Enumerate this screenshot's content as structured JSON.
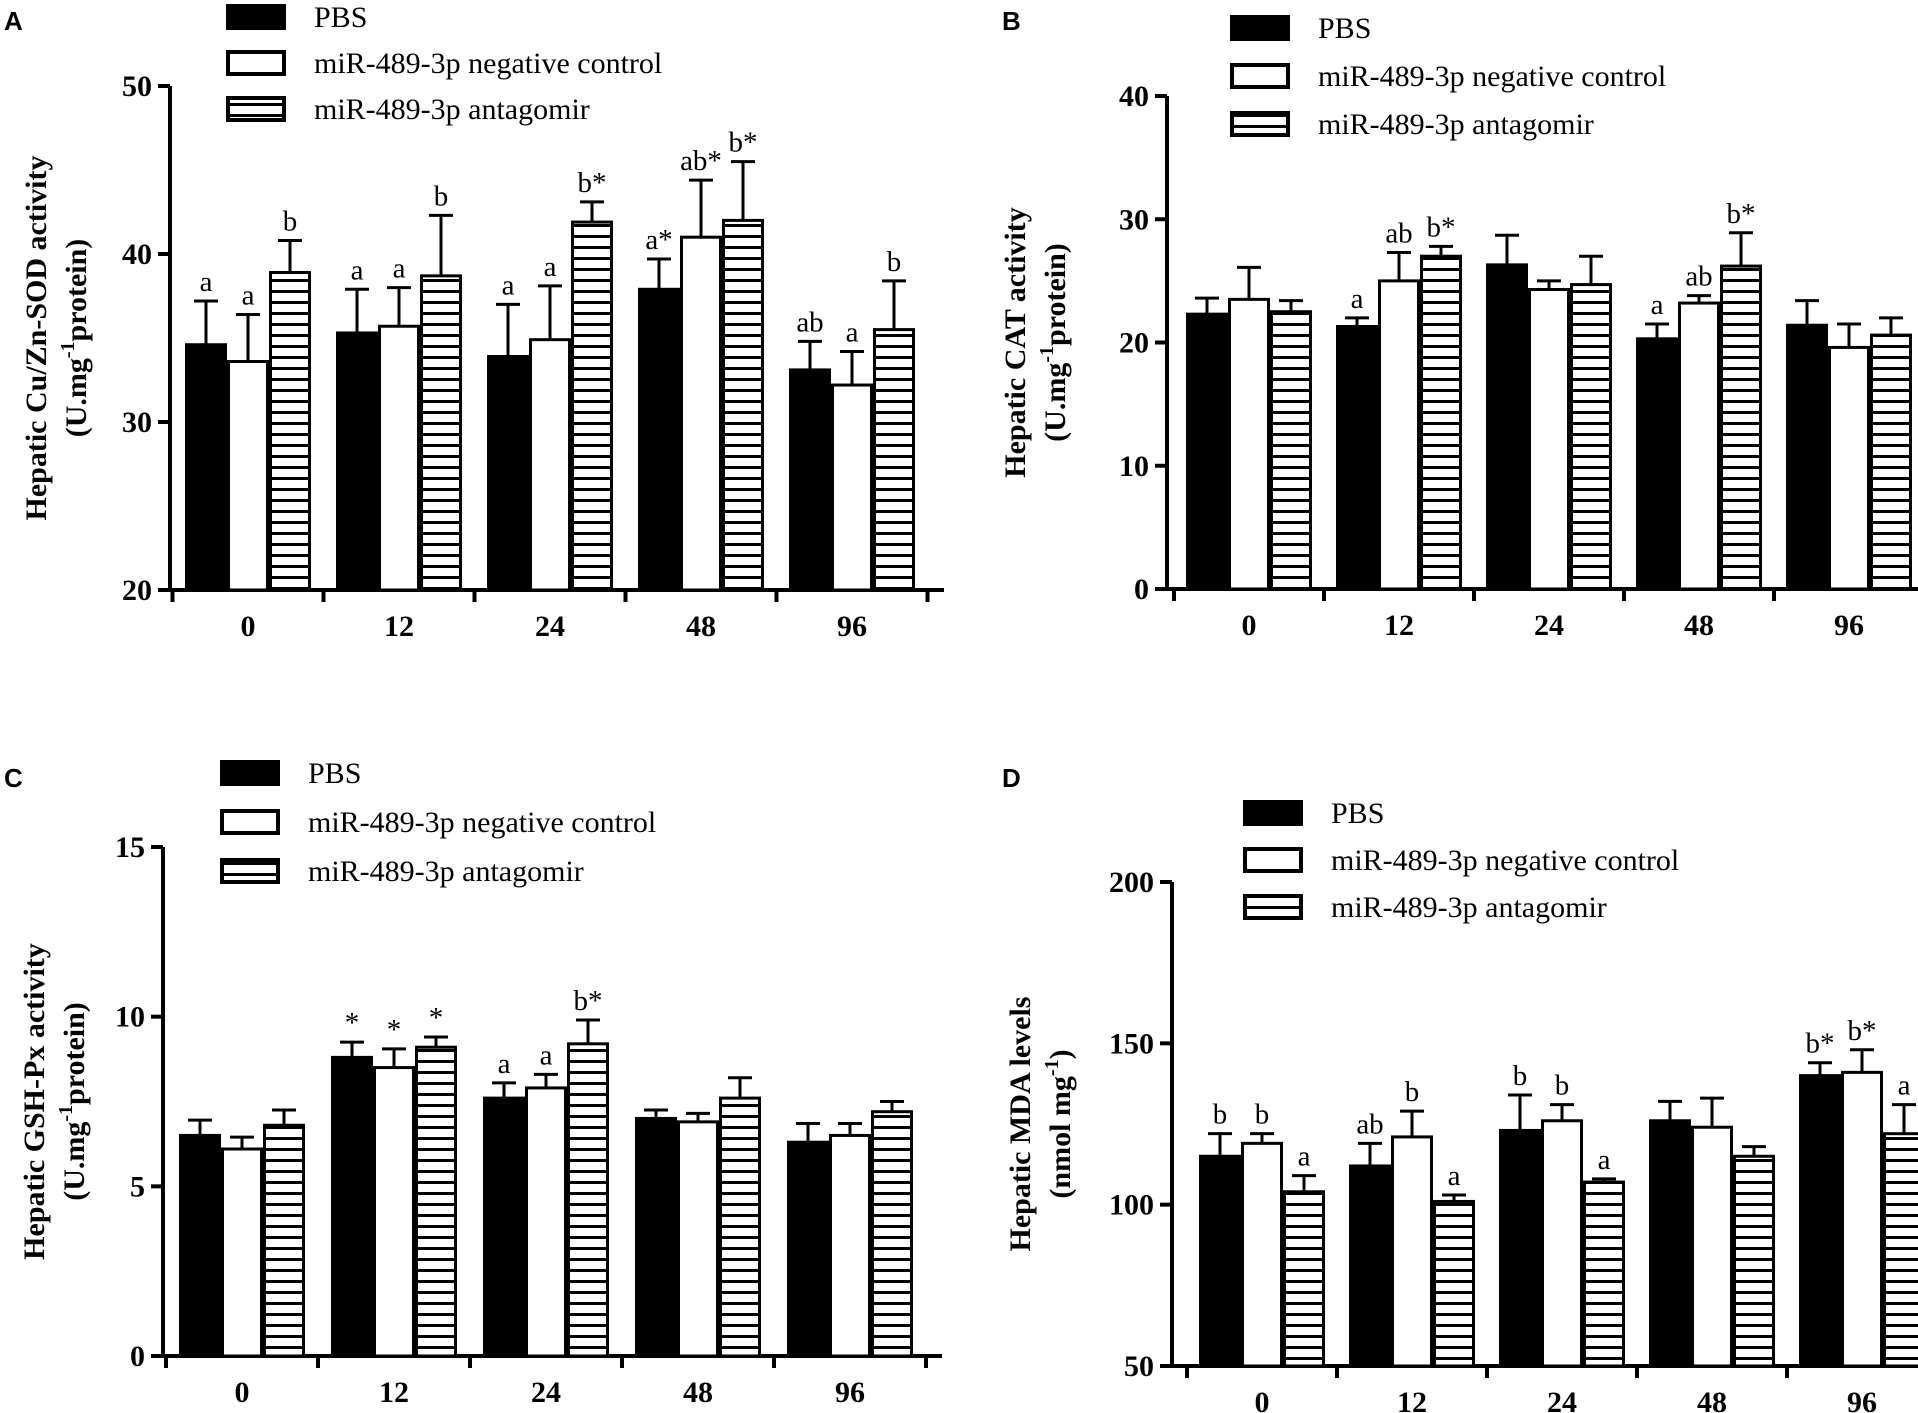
{
  "colors": {
    "pbs": "#000000",
    "negative_control": "#ffffff",
    "antagomir_stripe": "#000000",
    "axis": "#000000"
  },
  "legend_labels": [
    "PBS",
    "miR-489-3p negative control",
    "miR-489-3p antagomir"
  ],
  "chart_data": [
    {
      "panel": "A",
      "type": "bar",
      "ylabel_line1": "Hepatic Cu/Zn-SOD activity",
      "ylabel_line2_prefix": "(U.mg",
      "ylabel_line2_sup": "-1",
      "ylabel_line2_suffix": "protein)",
      "ylim": [
        20,
        50
      ],
      "yticks": [
        20,
        30,
        40,
        50
      ],
      "categories": [
        "0",
        "12",
        "24",
        "48",
        "96"
      ],
      "series": [
        {
          "name": "PBS",
          "values": [
            34.6,
            35.3,
            33.9,
            37.9,
            33.1
          ],
          "errors": [
            2.6,
            2.6,
            3.1,
            1.8,
            1.7
          ]
        },
        {
          "name": "miR-489-3p negative control",
          "values": [
            33.6,
            35.7,
            34.9,
            41.0,
            32.2
          ],
          "errors": [
            2.8,
            2.3,
            3.2,
            3.4,
            2.0
          ]
        },
        {
          "name": "miR-489-3p antagomir",
          "values": [
            38.9,
            38.7,
            41.9,
            42.0,
            35.5
          ],
          "errors": [
            1.9,
            3.6,
            1.2,
            3.5,
            2.9
          ]
        }
      ],
      "annotations": [
        [
          "a",
          "a",
          "b"
        ],
        [
          "a",
          "a",
          "b"
        ],
        [
          "a",
          "a",
          "b*"
        ],
        [
          "a*",
          "ab*",
          "b*"
        ],
        [
          "ab",
          "a",
          "b"
        ]
      ]
    },
    {
      "panel": "B",
      "type": "bar",
      "ylabel_line1": "Hepatic CAT activity",
      "ylabel_line2_prefix": "(U.mg",
      "ylabel_line2_sup": "-1",
      "ylabel_line2_suffix": "protein)",
      "ylim": [
        0,
        40
      ],
      "yticks": [
        0,
        10,
        20,
        30,
        40
      ],
      "categories": [
        "0",
        "12",
        "24",
        "48",
        "96"
      ],
      "series": [
        {
          "name": "PBS",
          "values": [
            22.3,
            21.3,
            26.3,
            20.3,
            21.4
          ],
          "errors": [
            1.3,
            0.7,
            2.4,
            1.2,
            2.0
          ]
        },
        {
          "name": "miR-489-3p negative control",
          "values": [
            23.5,
            25.0,
            24.3,
            23.2,
            19.6
          ],
          "errors": [
            2.6,
            2.3,
            0.7,
            0.6,
            1.9
          ]
        },
        {
          "name": "miR-489-3p antagomir",
          "values": [
            22.5,
            27.0,
            24.7,
            26.2,
            20.6
          ],
          "errors": [
            0.9,
            0.8,
            2.3,
            2.7,
            1.4
          ]
        }
      ],
      "annotations": [
        [
          "",
          "",
          ""
        ],
        [
          "a",
          "ab",
          "b*"
        ],
        [
          "",
          "",
          ""
        ],
        [
          "a",
          "ab",
          "b*"
        ],
        [
          "",
          "",
          ""
        ]
      ]
    },
    {
      "panel": "C",
      "type": "bar",
      "ylabel_line1": "Hepatic GSH-Px activity",
      "ylabel_line2_prefix": "(U.mg",
      "ylabel_line2_sup": "-1",
      "ylabel_line2_suffix": "protein)",
      "ylim": [
        0,
        15
      ],
      "yticks": [
        0,
        5,
        10,
        15
      ],
      "categories": [
        "0",
        "12",
        "24",
        "48",
        "96"
      ],
      "series": [
        {
          "name": "PBS",
          "values": [
            6.5,
            8.8,
            7.6,
            7.0,
            6.3
          ],
          "errors": [
            0.45,
            0.45,
            0.45,
            0.25,
            0.55
          ]
        },
        {
          "name": "miR-489-3p negative control",
          "values": [
            6.1,
            8.5,
            7.9,
            6.9,
            6.5
          ],
          "errors": [
            0.35,
            0.55,
            0.4,
            0.25,
            0.35
          ]
        },
        {
          "name": "miR-489-3p antagomir",
          "values": [
            6.8,
            9.1,
            9.2,
            7.6,
            7.2
          ],
          "errors": [
            0.45,
            0.3,
            0.7,
            0.6,
            0.3
          ]
        }
      ],
      "annotations": [
        [
          "",
          "",
          ""
        ],
        [
          "*",
          "*",
          "*"
        ],
        [
          "a",
          "a",
          "b*"
        ],
        [
          "",
          "",
          ""
        ],
        [
          "",
          "",
          ""
        ]
      ]
    },
    {
      "panel": "D",
      "type": "bar",
      "ylabel_line1": "Hepatic MDA levels",
      "ylabel_line2_prefix": "(nmol mg",
      "ylabel_line2_sup": "-1",
      "ylabel_line2_suffix": ")",
      "ylim": [
        50,
        200
      ],
      "yticks": [
        50,
        100,
        150,
        200
      ],
      "categories": [
        "0",
        "12",
        "24",
        "48",
        "96"
      ],
      "series": [
        {
          "name": "PBS",
          "values": [
            115,
            112,
            123,
            126,
            140
          ],
          "errors": [
            7,
            7,
            11,
            6,
            4
          ]
        },
        {
          "name": "miR-489-3p negative control",
          "values": [
            119,
            121,
            126,
            124,
            141
          ],
          "errors": [
            3,
            8,
            5,
            9,
            7
          ]
        },
        {
          "name": "miR-489-3p antagomir",
          "values": [
            104,
            101,
            107,
            115,
            122
          ],
          "errors": [
            5,
            2,
            1,
            3,
            9
          ]
        }
      ],
      "annotations": [
        [
          "b",
          "b",
          "a"
        ],
        [
          "ab",
          "b",
          "a"
        ],
        [
          "b",
          "b",
          "a"
        ],
        [
          "",
          "",
          ""
        ],
        [
          "b*",
          "b*",
          "a"
        ]
      ]
    }
  ]
}
